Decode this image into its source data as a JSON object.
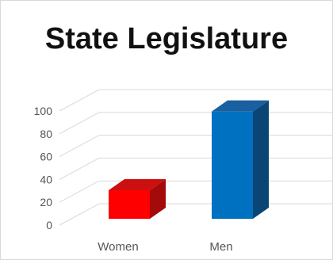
{
  "chart_data": {
    "type": "bar",
    "title": "State Legislature",
    "categories": [
      "Women",
      "Men"
    ],
    "values": [
      25,
      94
    ],
    "ylim": [
      0,
      100
    ],
    "yticks": [
      0,
      20,
      40,
      60,
      80,
      100
    ],
    "grid": true,
    "legend": "none",
    "colors": {
      "Women": {
        "front": "#ff0000",
        "top": "#cc1010",
        "side": "#a50a0a"
      },
      "Men": {
        "front": "#0070c0",
        "top": "#1a5fa0",
        "side": "#0b4576"
      },
      "gridline": "#d9d9d9"
    }
  }
}
